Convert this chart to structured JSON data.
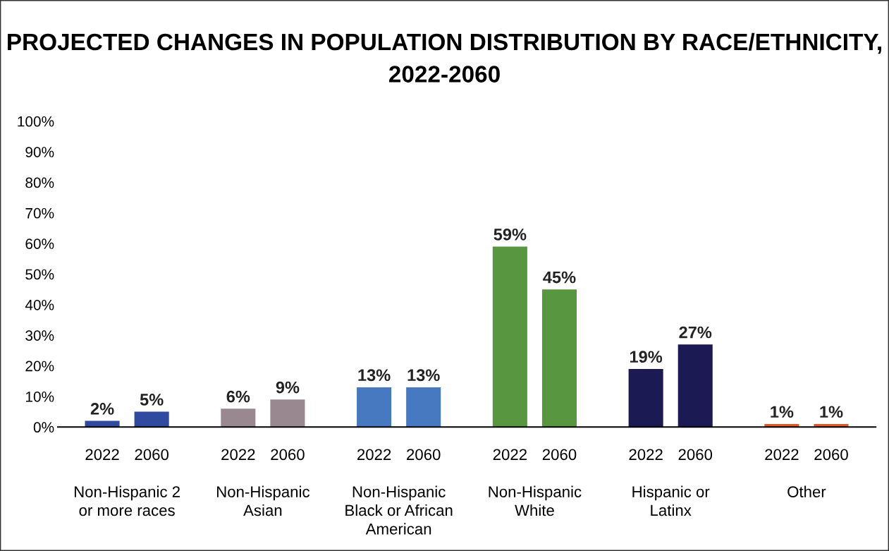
{
  "chart_data": {
    "type": "bar",
    "title": "PROJECTED CHANGES IN POPULATION DISTRIBUTION BY RACE/ETHNICITY,\n2022-2060",
    "categories": [
      "2022",
      "2060",
      "2022",
      "2060",
      "2022",
      "2060",
      "2022",
      "2060",
      "2022",
      "2060",
      "2022",
      "2060"
    ],
    "values": [
      2,
      5,
      6,
      9,
      13,
      13,
      59,
      45,
      19,
      27,
      1,
      1
    ],
    "colors": [
      "#2f4a9f",
      "#2f4a9f",
      "#9a8891",
      "#9a8891",
      "#4679bf",
      "#4679bf",
      "#58963f",
      "#58963f",
      "#1c1a52",
      "#1c1a52",
      "#e2582a",
      "#e2582a"
    ],
    "value_labels": [
      "2%",
      "5%",
      "6%",
      "9%",
      "13%",
      "13%",
      "59%",
      "45%",
      "19%",
      "27%",
      "1%",
      "1%"
    ],
    "annotations": [
      "Non-Hispanic 2\nor more races",
      "Non-Hispanic\nAsian",
      "Non-Hispanic\nBlack or African\nAmerican",
      "Non-Hispanic\nWhite",
      "Hispanic or\nLatinx",
      "Other"
    ],
    "ylim": [
      0,
      100
    ],
    "yticks": [
      {
        "value": 0,
        "label": "0%"
      },
      {
        "value": 10,
        "label": "10%"
      },
      {
        "value": 20,
        "label": "20%"
      },
      {
        "value": 30,
        "label": "30%"
      },
      {
        "value": 40,
        "label": "40%"
      },
      {
        "value": 50,
        "label": "50%"
      },
      {
        "value": 60,
        "label": "60%"
      },
      {
        "value": 70,
        "label": "70%"
      },
      {
        "value": 80,
        "label": "80%"
      },
      {
        "value": 90,
        "label": "90%"
      },
      {
        "value": 100,
        "label": "100%"
      }
    ],
    "grid": false,
    "legend": false
  }
}
